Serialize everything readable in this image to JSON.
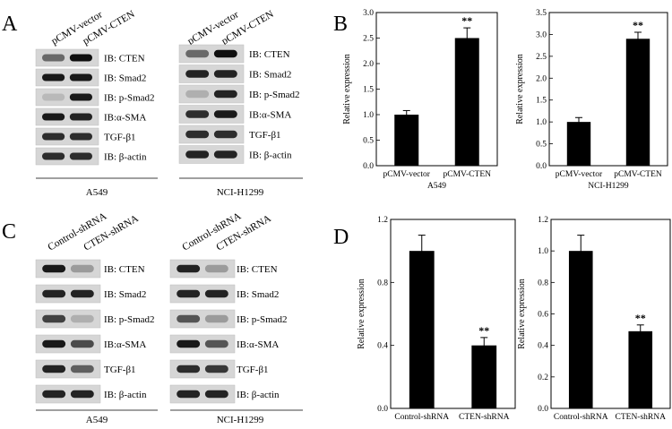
{
  "panels": {
    "A": {
      "letter": "A",
      "groups": [
        {
          "name": "A549",
          "lanes": [
            "pCMV-vector",
            "pCMV-CTEN"
          ],
          "blots": [
            {
              "label": "IB: CTEN",
              "bands": [
                0.55,
                1.0
              ]
            },
            {
              "label": "IB: Smad2",
              "bands": [
                0.95,
                0.95
              ]
            },
            {
              "label": "IB: p-Smad2",
              "bands": [
                0.15,
                0.95
              ]
            },
            {
              "label": "IB:α-SMA",
              "bands": [
                0.95,
                0.9
              ]
            },
            {
              "label": "TGF-β1",
              "bands": [
                0.85,
                0.85
              ]
            },
            {
              "label": "IB: β-actin",
              "bands": [
                0.85,
                0.85
              ]
            }
          ]
        },
        {
          "name": "NCI-H1299",
          "lanes": [
            "pCMV-vector",
            "pCMV-CTEN"
          ],
          "blots": [
            {
              "label": "IB: CTEN",
              "bands": [
                0.55,
                1.0
              ]
            },
            {
              "label": "IB: Smad2",
              "bands": [
                0.9,
                0.9
              ]
            },
            {
              "label": "IB: p-Smad2",
              "bands": [
                0.2,
                0.9
              ]
            },
            {
              "label": "IB:α-SMA",
              "bands": [
                0.85,
                0.95
              ]
            },
            {
              "label": "TGF-β1",
              "bands": [
                0.85,
                0.85
              ]
            },
            {
              "label": "IB: β-actin",
              "bands": [
                0.9,
                0.9
              ]
            }
          ]
        }
      ]
    },
    "B": {
      "letter": "B"
    },
    "C": {
      "letter": "C",
      "groups": [
        {
          "name": "A549",
          "lanes": [
            "Control-shRNA",
            "CTEN-shRNA"
          ],
          "blots": [
            {
              "label": "IB: CTEN",
              "bands": [
                0.95,
                0.3
              ]
            },
            {
              "label": "IB: Smad2",
              "bands": [
                0.9,
                0.9
              ]
            },
            {
              "label": "IB: p-Smad2",
              "bands": [
                0.75,
                0.2
              ]
            },
            {
              "label": "IB:α-SMA",
              "bands": [
                0.95,
                0.7
              ]
            },
            {
              "label": "TGF-β1",
              "bands": [
                0.9,
                0.6
              ]
            },
            {
              "label": "IB: β-actin",
              "bands": [
                0.9,
                0.9
              ]
            }
          ]
        },
        {
          "name": "NCI-H1299",
          "lanes": [
            "Control-shRNA",
            "CTEN-shRNA"
          ],
          "blots": [
            {
              "label": "IB: CTEN",
              "bands": [
                0.9,
                0.3
              ]
            },
            {
              "label": "IB: Smad2",
              "bands": [
                0.9,
                0.9
              ]
            },
            {
              "label": "IB: p-Smad2",
              "bands": [
                0.65,
                0.3
              ]
            },
            {
              "label": "IB:α-SMA",
              "bands": [
                0.95,
                0.65
              ]
            },
            {
              "label": "TGF-β1",
              "bands": [
                0.85,
                0.8
              ]
            },
            {
              "label": "IB: β-actin",
              "bands": [
                0.9,
                0.9
              ]
            }
          ]
        }
      ]
    },
    "D": {
      "letter": "D"
    }
  },
  "chart_data": [
    {
      "panel": "B",
      "type": "bar",
      "ylabel": "Relative expression",
      "xlabel": "A549",
      "categories": [
        "pCMV-vector",
        "pCMV-CTEN"
      ],
      "values": [
        1.0,
        2.5
      ],
      "errors": [
        0.08,
        0.2
      ],
      "significance": [
        "",
        "**"
      ],
      "ylim": [
        0,
        3.0
      ],
      "yticks": [
        "0.0",
        "0.5",
        "1.0",
        "1.5",
        "2.0",
        "2.5",
        "3.0"
      ]
    },
    {
      "panel": "B",
      "type": "bar",
      "ylabel": "Relative expression",
      "xlabel": "NCI-H1299",
      "categories": [
        "pCMV-vector",
        "pCMV-CTEN"
      ],
      "values": [
        1.0,
        2.9
      ],
      "errors": [
        0.1,
        0.15
      ],
      "significance": [
        "",
        "**"
      ],
      "ylim": [
        0,
        3.5
      ],
      "yticks": [
        "0.0",
        "0.5",
        "1.0",
        "1.5",
        "2.0",
        "2.5",
        "3.0",
        "3.5"
      ]
    },
    {
      "panel": "D",
      "type": "bar",
      "ylabel": "Relative expression",
      "xlabel": "A549",
      "categories": [
        "Control-shRNA",
        "CTEN-shRNA"
      ],
      "values": [
        1.0,
        0.4
      ],
      "errors": [
        0.1,
        0.05
      ],
      "significance": [
        "",
        "**"
      ],
      "ylim": [
        0,
        1.2
      ],
      "yticks": [
        "0.0",
        "0.4",
        "0.8",
        "1.2"
      ]
    },
    {
      "panel": "D",
      "type": "bar",
      "ylabel": "Relative expression",
      "xlabel": "NCI-H1299",
      "categories": [
        "Control-shRNA",
        "CTEN-shRNA"
      ],
      "values": [
        1.0,
        0.49
      ],
      "errors": [
        0.1,
        0.04
      ],
      "significance": [
        "",
        "**"
      ],
      "ylim": [
        0,
        1.2
      ],
      "yticks": [
        "0.0",
        "0.2",
        "0.4",
        "0.6",
        "0.8",
        "1.0",
        "1.2"
      ]
    }
  ]
}
